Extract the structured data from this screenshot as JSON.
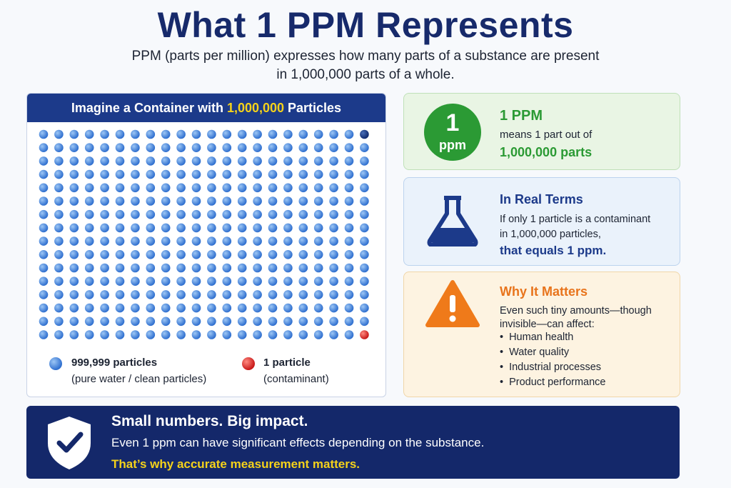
{
  "header": {
    "title": "What 1 PPM Represents",
    "subtitle_lines": [
      "PPM (parts per million) expresses how many parts of a substance are present",
      "in 1,000,000 parts of a whole."
    ]
  },
  "container": {
    "heading": {
      "before": "Imagine a Container with ",
      "highlight": "1,000,000",
      "after": " Particles"
    },
    "legend": [
      {
        "label": "999,999 particles",
        "note": "(pure water / clean particles)"
      },
      {
        "label": "1 particle",
        "note": "(contaminant)"
      }
    ]
  },
  "cards": [
    {
      "badge_number": "1",
      "badge_unit": "ppm",
      "title": "1 PPM",
      "lines": [
        "means 1 part out of"
      ],
      "emphasis": "1,000,000 parts"
    },
    {
      "title": "In Real Terms",
      "lines": [
        "If only 1 particle is a contaminant",
        "in 1,000,000 particles,"
      ],
      "emphasis": "that equals 1 ppm."
    },
    {
      "title": "Why It Matters",
      "lines": [
        "Even such tiny amounts—though",
        "invisible—can affect:"
      ],
      "bullets": [
        "Human health",
        "Water quality",
        "Industrial processes",
        "Product performance"
      ]
    }
  ],
  "footer": {
    "title": "Small numbers. Big impact.",
    "text": "Even 1 ppm can have significant effects depending on the substance.",
    "emphasis": "That’s why accurate measurement matters."
  }
}
